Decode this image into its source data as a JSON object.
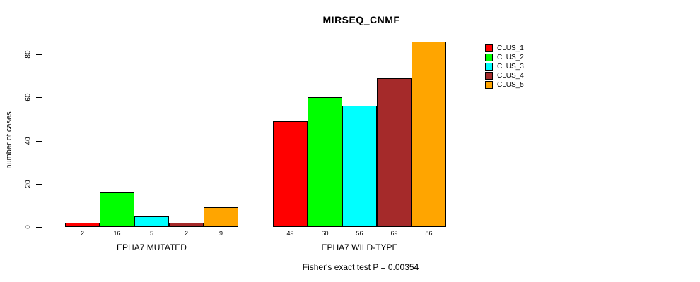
{
  "chart_data": {
    "type": "bar",
    "title": "MIRSEQ_CNMF",
    "ylabel": "number of cases",
    "xlabel": "",
    "yticks": [
      0,
      20,
      40,
      60,
      80
    ],
    "ylim": [
      0,
      86
    ],
    "grid": false,
    "legend_position": "right-outside",
    "categories": [
      "EPHA7 MUTATED",
      "EPHA7 WILD-TYPE"
    ],
    "series": [
      {
        "name": "CLUS_1",
        "color": "#ff0000",
        "values": [
          2,
          49
        ]
      },
      {
        "name": "CLUS_2",
        "color": "#00ff00",
        "values": [
          16,
          60
        ]
      },
      {
        "name": "CLUS_3",
        "color": "#00ffff",
        "values": [
          5,
          56
        ]
      },
      {
        "name": "CLUS_4",
        "color": "#a52a2a",
        "values": [
          2,
          69
        ]
      },
      {
        "name": "CLUS_5",
        "color": "#ffa500",
        "values": [
          9,
          86
        ]
      }
    ],
    "bar_value_labels_shown": true,
    "subtitle": "Fisher's exact test P = 0.00354"
  }
}
